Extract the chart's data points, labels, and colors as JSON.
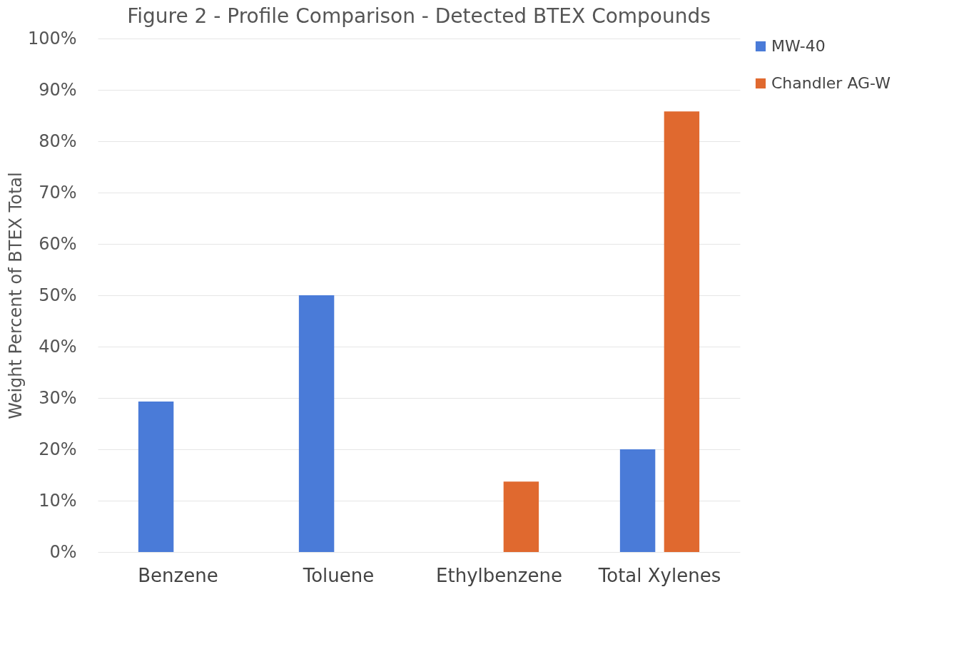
{
  "chart_data": {
    "type": "bar",
    "title": "Figure 2 - Profile Comparison - Detected BTEX Compounds",
    "ylabel": "Weight Percent of BTEX Total",
    "categories": [
      "Benzene",
      "Toluene",
      "Ethylbenzene",
      "Total Xylenes"
    ],
    "series": [
      {
        "name": "MW-40",
        "color": "#4a7bd8",
        "values": [
          29.3,
          50,
          null,
          20
        ]
      },
      {
        "name": "Chandler AG-W",
        "color": "#e0692f",
        "values": [
          null,
          null,
          13.7,
          85.8
        ]
      }
    ],
    "ylim": [
      0,
      100
    ],
    "yticks": [
      {
        "value": 0,
        "label": "0%"
      },
      {
        "value": 10,
        "label": "10%"
      },
      {
        "value": 20,
        "label": "20%"
      },
      {
        "value": 30,
        "label": "30%"
      },
      {
        "value": 40,
        "label": "40%"
      },
      {
        "value": 50,
        "label": "50%"
      },
      {
        "value": 60,
        "label": "60%"
      },
      {
        "value": 70,
        "label": "70%"
      },
      {
        "value": 80,
        "label": "80%"
      },
      {
        "value": 90,
        "label": "90%"
      },
      {
        "value": 100,
        "label": "100%"
      }
    ],
    "grid": "y",
    "legend": "right"
  }
}
